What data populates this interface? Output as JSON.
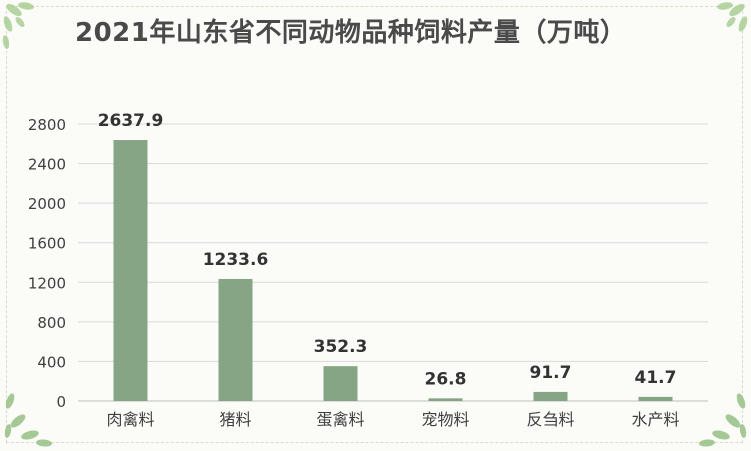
{
  "chart_data": {
    "type": "bar",
    "title": "2021年山东省不同动物品种饲料产量（万吨）",
    "categories": [
      "肉禽料",
      "猪料",
      "蛋禽料",
      "宠物料",
      "反刍料",
      "水产料"
    ],
    "values": [
      2637.9,
      1233.6,
      352.3,
      26.8,
      91.7,
      41.7
    ],
    "data_labels": [
      "2637.9",
      "1233.6",
      "352.3",
      "26.8",
      "91.7",
      "41.7"
    ],
    "ylim": [
      0,
      2800
    ],
    "yticks": [
      "0",
      "400",
      "800",
      "1200",
      "1600",
      "2000",
      "2400",
      "2800"
    ],
    "ytick_values": [
      0,
      400,
      800,
      1200,
      1600,
      2000,
      2400,
      2800
    ],
    "grid": true,
    "legend": "none",
    "bar_color": "#86a585",
    "xlabel": "",
    "ylabel": ""
  },
  "colors": {
    "title": "#4a4a4a",
    "grid": "#d9d9d9",
    "axis": "#bfbfbf",
    "tick_text": "#404040",
    "label_text": "#333333",
    "leaf": "#9cc48a"
  }
}
